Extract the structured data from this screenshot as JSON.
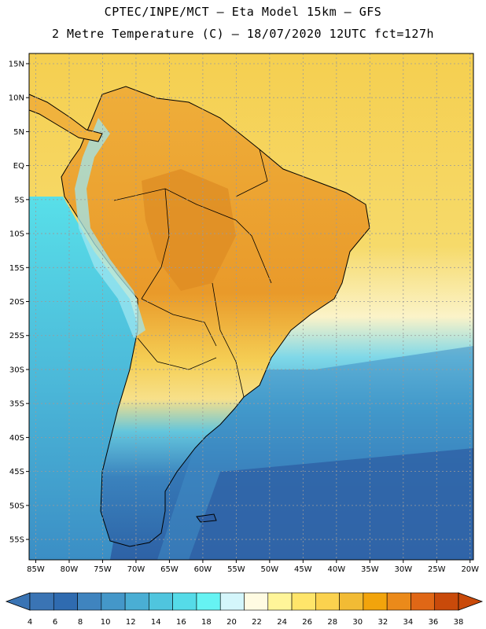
{
  "header": {
    "line1": "CPTEC/INPE/MCT –  Eta Model 15km – GFS",
    "line2": "2 Metre Temperature (C) – 18/07/2020 12UTC fct=127h"
  },
  "axes": {
    "lat_labels": [
      "15N",
      "10N",
      "5N",
      "EQ",
      "5S",
      "10S",
      "15S",
      "20S",
      "25S",
      "30S",
      "35S",
      "40S",
      "45S",
      "50S",
      "55S"
    ],
    "lon_labels": [
      "85W",
      "80W",
      "75W",
      "70W",
      "65W",
      "60W",
      "55W",
      "50W",
      "45W",
      "40W",
      "35W",
      "30W",
      "25W",
      "20W"
    ]
  },
  "map": {
    "ocean_north_color": "#f5cf50",
    "ocean_south_color": "#2e62a6",
    "land_color": "#eca734",
    "grid_color": "#9a9a9a"
  },
  "colorbar": {
    "tick_labels": [
      "4",
      "6",
      "8",
      "10",
      "12",
      "14",
      "16",
      "18",
      "20",
      "22",
      "24",
      "26",
      "28",
      "30",
      "32",
      "34",
      "36",
      "38"
    ],
    "colors": [
      "#3a74b4",
      "#2f6bb0",
      "#3f84bf",
      "#4497c9",
      "#4aaed4",
      "#4fc5de",
      "#55dbe8",
      "#66f3f3",
      "#d4f6fb",
      "#fffbe2",
      "#fff599",
      "#ffe56a",
      "#fbd24e",
      "#f2bb34",
      "#f2a40c",
      "#eb8a1a",
      "#e06716",
      "#c94a0a"
    ]
  }
}
